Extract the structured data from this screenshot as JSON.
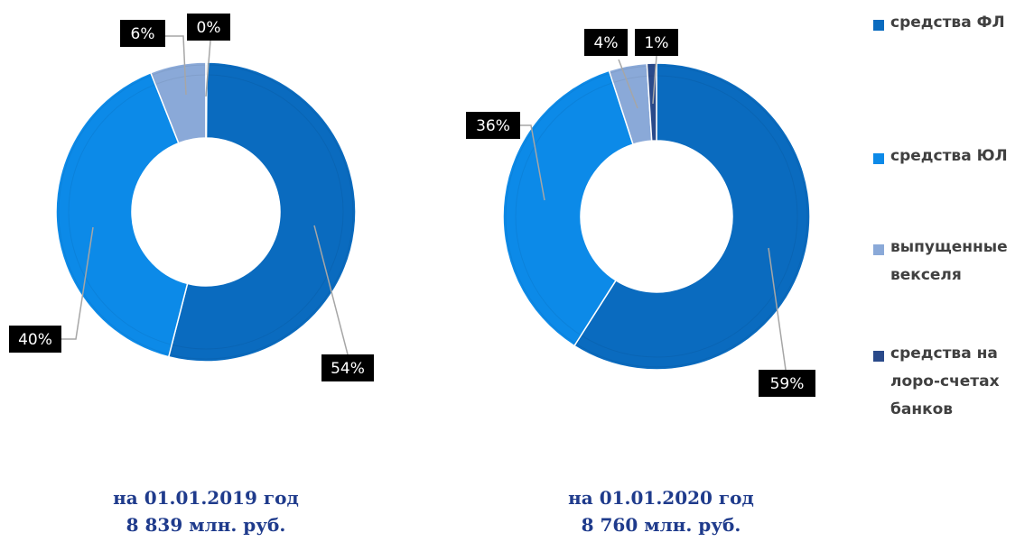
{
  "colors": {
    "fl": "#0a6bbf",
    "ul": "#0c8ae8",
    "veksel": "#8aa9d8",
    "loro": "#2a4a8a",
    "label_bg": "#000000",
    "label_text": "#ffffff",
    "leader": "#a6a6a6",
    "caption": "#1f3b8c"
  },
  "legend": [
    {
      "key": "fl",
      "label": "средства ФЛ"
    },
    {
      "key": "ul",
      "label": "средства ЮЛ"
    },
    {
      "key": "veksel",
      "label": "выпущенные векселя"
    },
    {
      "key": "loro",
      "label": "средства на лоро-счетах банков"
    }
  ],
  "chart_data": [
    {
      "type": "pie",
      "variant": "donut",
      "title": "",
      "caption_lines": [
        "на 01.01.2019 год",
        "8 839 млн. руб."
      ],
      "categories": [
        "средства ФЛ",
        "средства ЮЛ",
        "выпущенные векселя",
        "средства на лоро-счетах банков"
      ],
      "keys": [
        "fl",
        "ul",
        "veksel",
        "loro"
      ],
      "values": [
        54,
        40,
        6,
        0
      ],
      "labels": [
        "54%",
        "40%",
        "6%",
        "0%"
      ]
    },
    {
      "type": "pie",
      "variant": "donut",
      "title": "",
      "caption_lines": [
        "на 01.01.2020 год",
        "8 760 млн. руб."
      ],
      "categories": [
        "средства ФЛ",
        "средства ЮЛ",
        "выпущенные векселя",
        "средства на лоро-счетах банков"
      ],
      "keys": [
        "fl",
        "ul",
        "veksel",
        "loro"
      ],
      "values": [
        59,
        36,
        4,
        1
      ],
      "labels": [
        "59%",
        "36%",
        "4%",
        "1%"
      ]
    }
  ]
}
